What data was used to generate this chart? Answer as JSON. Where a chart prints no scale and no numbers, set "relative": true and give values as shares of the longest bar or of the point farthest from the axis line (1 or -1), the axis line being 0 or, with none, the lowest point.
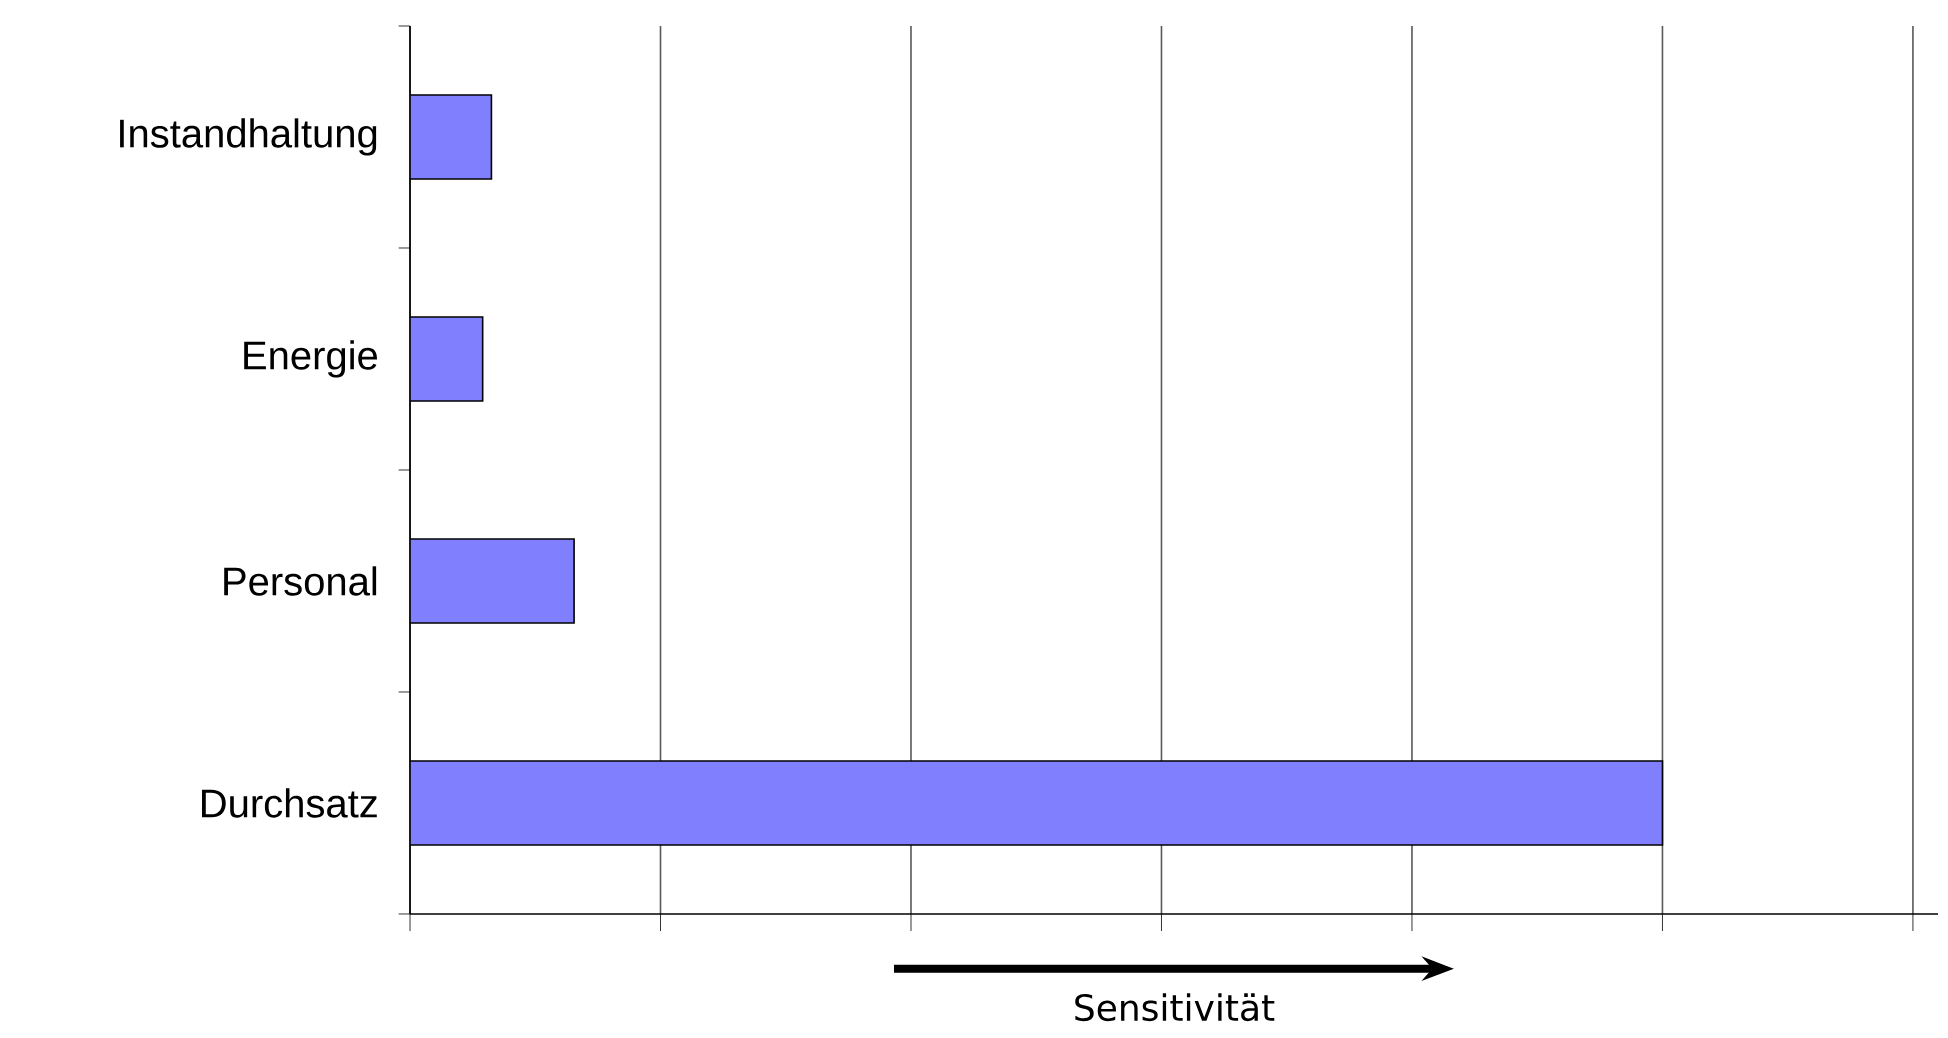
{
  "chart_data": {
    "type": "bar",
    "orientation": "horizontal",
    "relative": true,
    "xlabel": "Sensitivität",
    "categories": [
      "Instandhaltung",
      "Energie",
      "Personal",
      "Durchsatz"
    ],
    "values": [
      0.065,
      0.058,
      0.131,
      1
    ],
    "color": "#8080ff",
    "grid": "x"
  }
}
